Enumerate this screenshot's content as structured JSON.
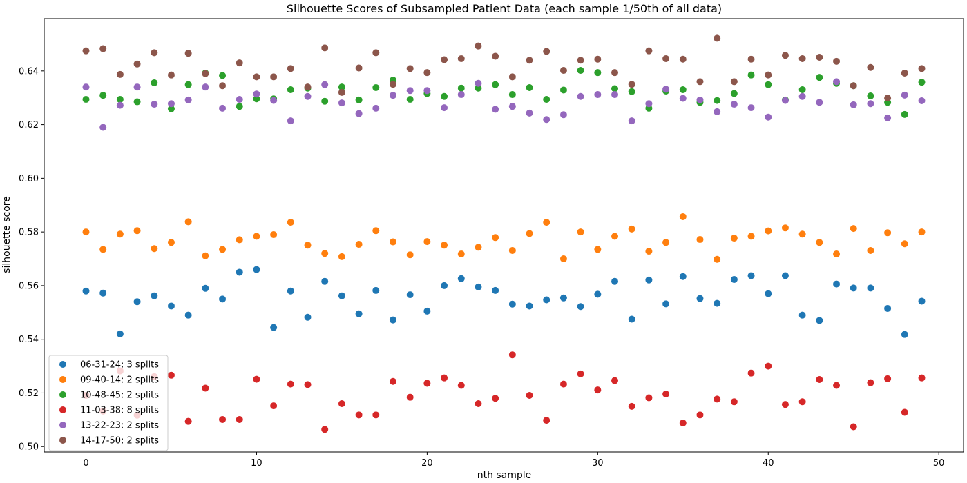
{
  "chart_data": {
    "type": "scatter",
    "title": "Silhouette Scores of Subsampled Patient Data (each sample 1/50th of all data)",
    "xlabel": "nth sample",
    "ylabel": "silhouette score",
    "xlim": [
      -2.45,
      51.45
    ],
    "ylim": [
      0.498,
      0.6595
    ],
    "xticks": [
      0,
      10,
      20,
      30,
      40,
      50
    ],
    "yticks": [
      0.5,
      0.52,
      0.54,
      0.56,
      0.58,
      0.6,
      0.62,
      0.64
    ],
    "ytick_labels": [
      "0.50",
      "0.52",
      "0.54",
      "0.56",
      "0.58",
      "0.60",
      "0.62",
      "0.64"
    ],
    "grid": false,
    "legend_position": "lower left",
    "x": [
      0,
      1,
      2,
      3,
      4,
      5,
      6,
      7,
      8,
      9,
      10,
      11,
      12,
      13,
      14,
      15,
      16,
      17,
      18,
      19,
      20,
      21,
      22,
      23,
      24,
      25,
      26,
      27,
      28,
      29,
      30,
      31,
      32,
      33,
      34,
      35,
      36,
      37,
      38,
      39,
      40,
      41,
      42,
      43,
      44,
      45,
      46,
      47,
      48,
      49
    ],
    "series": [
      {
        "name": "06-31-24: 3 splits",
        "color": "#1f77b4",
        "values": [
          0.558,
          0.5572,
          0.542,
          0.554,
          0.5562,
          0.5524,
          0.549,
          0.559,
          0.555,
          0.565,
          0.566,
          0.5444,
          0.558,
          0.5482,
          0.5616,
          0.5562,
          0.5495,
          0.5582,
          0.5472,
          0.5566,
          0.5505,
          0.56,
          0.5626,
          0.5595,
          0.5582,
          0.5531,
          0.5524,
          0.5547,
          0.5554,
          0.5522,
          0.5568,
          0.5616,
          0.5475,
          0.5621,
          0.5532,
          0.5634,
          0.5552,
          0.5534,
          0.5623,
          0.5637,
          0.557,
          0.5637,
          0.549,
          0.547,
          0.5606,
          0.5591,
          0.5591,
          0.5515,
          0.5418,
          0.5542
        ]
      },
      {
        "name": "09-40-14: 2 splits",
        "color": "#ff7f0e",
        "values": [
          0.58,
          0.5735,
          0.5792,
          0.5805,
          0.5738,
          0.5761,
          0.5838,
          0.5711,
          0.5735,
          0.5771,
          0.5784,
          0.579,
          0.5836,
          0.5751,
          0.572,
          0.5708,
          0.5754,
          0.5805,
          0.5763,
          0.5715,
          0.5764,
          0.5751,
          0.5718,
          0.5743,
          0.5779,
          0.5731,
          0.5794,
          0.5836,
          0.57,
          0.58,
          0.5735,
          0.5784,
          0.5811,
          0.5728,
          0.5761,
          0.5857,
          0.5772,
          0.5698,
          0.5777,
          0.5784,
          0.5804,
          0.5815,
          0.5792,
          0.5761,
          0.5718,
          0.5813,
          0.5731,
          0.5797,
          0.5756,
          0.58
        ]
      },
      {
        "name": "10-48-45: 2 splits",
        "color": "#2ca02c",
        "values": [
          0.6294,
          0.6309,
          0.6294,
          0.6285,
          0.6356,
          0.6259,
          0.6349,
          0.6392,
          0.6383,
          0.6268,
          0.6296,
          0.6296,
          0.633,
          0.6336,
          0.6287,
          0.634,
          0.6292,
          0.6338,
          0.6366,
          0.6294,
          0.6316,
          0.6305,
          0.6336,
          0.6336,
          0.6349,
          0.6312,
          0.6338,
          0.6294,
          0.6329,
          0.6402,
          0.6394,
          0.6334,
          0.6323,
          0.6261,
          0.6325,
          0.633,
          0.6283,
          0.629,
          0.6316,
          0.6385,
          0.6349,
          0.6292,
          0.633,
          0.6376,
          0.6354,
          0.6345,
          0.6307,
          0.6283,
          0.6238,
          0.6358
        ]
      },
      {
        "name": "11-03-38: 8 splits",
        "color": "#d62728",
        "values": [
          0.5191,
          0.5132,
          0.5282,
          0.5117,
          0.5261,
          0.5266,
          0.5094,
          0.5218,
          0.5101,
          0.5101,
          0.5251,
          0.5152,
          0.5233,
          0.5231,
          0.5064,
          0.516,
          0.5118,
          0.5118,
          0.5243,
          0.5184,
          0.5236,
          0.5256,
          0.5228,
          0.516,
          0.518,
          0.5342,
          0.5191,
          0.5098,
          0.5233,
          0.5271,
          0.5211,
          0.5246,
          0.515,
          0.5182,
          0.5196,
          0.5088,
          0.5118,
          0.5177,
          0.5167,
          0.5274,
          0.53,
          0.5157,
          0.5167,
          0.525,
          0.5228,
          0.5074,
          0.5238,
          0.5253,
          0.5128,
          0.5256
        ]
      },
      {
        "name": "13-22-23: 2 splits",
        "color": "#9467bd",
        "values": [
          0.634,
          0.619,
          0.6272,
          0.634,
          0.6276,
          0.6278,
          0.6292,
          0.634,
          0.6261,
          0.6294,
          0.6314,
          0.629,
          0.6214,
          0.6305,
          0.6349,
          0.6281,
          0.6241,
          0.6261,
          0.6309,
          0.6327,
          0.6327,
          0.6263,
          0.6312,
          0.6354,
          0.6257,
          0.6268,
          0.6243,
          0.6219,
          0.6237,
          0.6305,
          0.6312,
          0.6312,
          0.6214,
          0.6278,
          0.6332,
          0.6298,
          0.6292,
          0.6248,
          0.6276,
          0.6263,
          0.6228,
          0.629,
          0.6305,
          0.6283,
          0.636,
          0.6274,
          0.6278,
          0.6225,
          0.631,
          0.6289
        ]
      },
      {
        "name": "14-17-50: 2 splits",
        "color": "#8c564b",
        "values": [
          0.6475,
          0.6483,
          0.6387,
          0.6426,
          0.6468,
          0.6385,
          0.6466,
          0.639,
          0.6345,
          0.643,
          0.6378,
          0.6378,
          0.6409,
          0.634,
          0.6486,
          0.632,
          0.6411,
          0.6468,
          0.635,
          0.6409,
          0.6394,
          0.6442,
          0.6446,
          0.6493,
          0.6455,
          0.6378,
          0.644,
          0.6473,
          0.6402,
          0.644,
          0.6444,
          0.6394,
          0.635,
          0.6475,
          0.6446,
          0.6444,
          0.636,
          0.6522,
          0.636,
          0.6444,
          0.6385,
          0.6458,
          0.6446,
          0.6451,
          0.6436,
          0.6345,
          0.6413,
          0.6299,
          0.6392,
          0.6409
        ]
      }
    ]
  }
}
